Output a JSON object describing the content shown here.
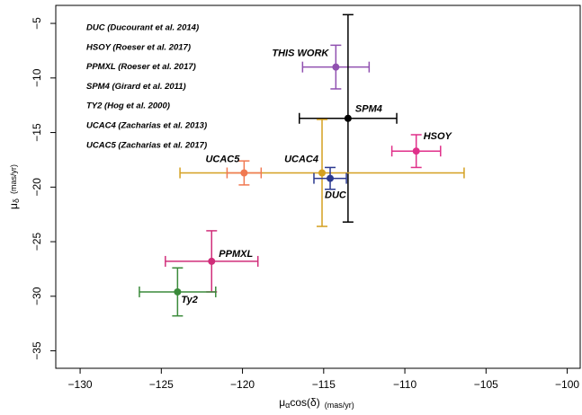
{
  "chart_data": {
    "type": "scatter",
    "x_label": {
      "main": "μ",
      "sub": "α",
      "rest": "cos(δ)",
      "unit": "(mas/yr)"
    },
    "y_label": {
      "main": "μ",
      "sub": "δ",
      "unit": "(mas/yr)"
    },
    "xlim": [
      -131.5,
      -99.2
    ],
    "ylim": [
      -36.6,
      -3.35
    ],
    "xticks": [
      {
        "value": -130,
        "label": "−130"
      },
      {
        "value": -125,
        "label": "−125"
      },
      {
        "value": -120,
        "label": "−120"
      },
      {
        "value": -115,
        "label": "−115"
      },
      {
        "value": -110,
        "label": "−110"
      },
      {
        "value": -105,
        "label": "−105"
      },
      {
        "value": -100,
        "label": "−100"
      }
    ],
    "yticks": [
      {
        "value": -5,
        "label": "−5"
      },
      {
        "value": -10,
        "label": "−10"
      },
      {
        "value": -15,
        "label": "−15"
      },
      {
        "value": -20,
        "label": "−20"
      },
      {
        "value": -25,
        "label": "−25"
      },
      {
        "value": -30,
        "label": "−30"
      },
      {
        "value": -35,
        "label": "−35"
      }
    ],
    "legend": [
      {
        "text": "DUC (Ducourant et al. 2014)",
        "color": "#2b3990"
      },
      {
        "text": "HSOY (Roeser et al. 2017)",
        "color": "#e0308a"
      },
      {
        "text": "PPMXL (Roeser et al. 2017)",
        "color": "#d02e7a"
      },
      {
        "text": "SPM4 (Girard et al. 2011)",
        "color": "#000000"
      },
      {
        "text": "TY2 (Hog et al. 2000)",
        "color": "#3a8a3a"
      },
      {
        "text": "UCAC4 (Zacharias et al. 2013)",
        "color": "#d4a020"
      },
      {
        "text": "UCAC5 (Zacharias et al. 2017)",
        "color": "#f07850"
      }
    ],
    "points": [
      {
        "label": "THIS WORK",
        "color": "#9050b0",
        "x": -114.25,
        "y": -9.0,
        "xerr": 2.05,
        "yerr": 2.0
      },
      {
        "label": "SPM4",
        "color": "#000000",
        "x": -113.5,
        "y": -13.7,
        "xerr": 3.0,
        "yerr": 9.5
      },
      {
        "label": "HSOY",
        "color": "#e0308a",
        "x": -109.3,
        "y": -16.7,
        "xerr": 1.5,
        "yerr": 1.5
      },
      {
        "label": "UCAC4",
        "color": "#d4a020",
        "x": -115.1,
        "y": -18.7,
        "xerr": 8.75,
        "yerr": 4.9
      },
      {
        "label": "DUC",
        "color": "#2b3990",
        "x": -114.6,
        "y": -19.2,
        "xerr": 1.0,
        "yerr": 1.0
      },
      {
        "label": "UCAC5",
        "color": "#f07850",
        "x": -119.9,
        "y": -18.7,
        "xerr": 1.05,
        "yerr": 1.1
      },
      {
        "label": "PPMXL",
        "color": "#d02e7a",
        "x": -121.9,
        "y": -26.8,
        "xerr": 2.85,
        "yerr": 2.8
      },
      {
        "label": "Ty2",
        "color": "#3a8a3a",
        "x": -124.0,
        "y": -29.6,
        "xerr": 2.35,
        "yerr": 2.2
      }
    ]
  }
}
